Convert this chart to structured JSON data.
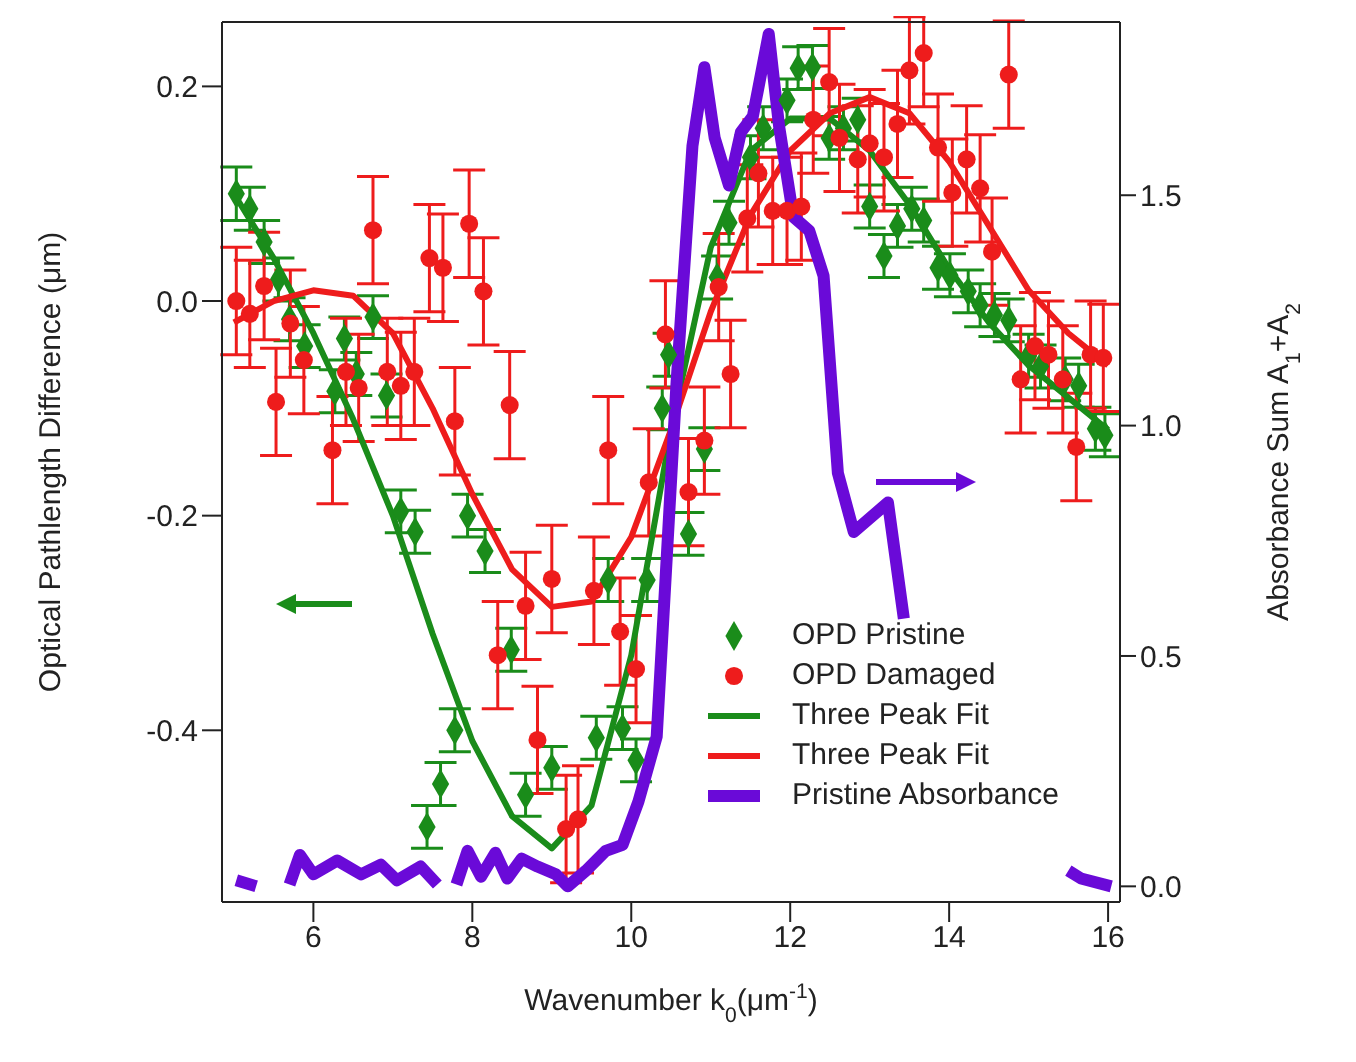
{
  "chart_data": {
    "type": "scatter",
    "xlabel": "Wavenumber k$_{0}$(μm$^{-1}$)",
    "ylabel": "Optical Pathlength Difference (μm)",
    "y2label": "Absorbance Sum A$_{1}$+A$_{2}$",
    "xlim": [
      4.85,
      16.15
    ],
    "xticks": [
      6,
      8,
      10,
      12,
      14,
      16
    ],
    "ylim": [
      -0.56,
      0.26
    ],
    "yticks": [
      {
        "value": -0.4,
        "label": "-0.4"
      },
      {
        "value": -0.2,
        "label": "-0.2"
      },
      {
        "value": 0,
        "label": "0.0"
      },
      {
        "value": 0.2,
        "label": "0.2"
      }
    ],
    "y2lim": [
      -0.034,
      1.876
    ],
    "y2ticks": [
      {
        "value": 0,
        "label": "0.0"
      },
      {
        "value": 0.5,
        "label": "0.5"
      },
      {
        "value": 1,
        "label": "1.0"
      },
      {
        "value": 1.5,
        "label": "1.5"
      }
    ],
    "legend": "bottom right",
    "series": [
      {
        "name": "OPD Pristine",
        "marker": "diamond",
        "color": "#1a8c1a",
        "x": [
          5.03,
          5.2,
          5.38,
          5.56,
          5.7,
          5.89,
          6.27,
          6.39,
          6.54,
          6.75,
          6.92,
          7.1,
          7.28,
          7.43,
          7.6,
          7.78,
          7.94,
          8.16,
          8.49,
          8.67,
          9.0,
          9.56,
          9.71,
          9.89,
          10.06,
          10.2,
          10.39,
          10.47,
          10.72,
          10.92,
          11.08,
          11.23,
          11.5,
          11.66,
          11.96,
          12.1,
          12.28,
          12.49,
          12.67,
          12.85,
          13.0,
          13.18,
          13.35,
          13.53,
          13.68,
          13.86,
          14.01,
          14.24,
          14.39,
          14.57,
          14.75,
          15.0,
          15.15,
          15.46,
          15.63,
          15.84,
          15.96
        ],
        "values": [
          0.1,
          0.086,
          0.055,
          0.02,
          -0.017,
          -0.042,
          -0.084,
          -0.035,
          -0.068,
          -0.015,
          -0.088,
          -0.196,
          -0.215,
          -0.49,
          -0.45,
          -0.4,
          -0.2,
          -0.233,
          -0.325,
          -0.46,
          -0.435,
          -0.407,
          -0.26,
          -0.398,
          -0.428,
          -0.26,
          -0.1,
          -0.05,
          -0.217,
          -0.138,
          0.022,
          0.073,
          0.134,
          0.161,
          0.187,
          0.217,
          0.218,
          0.152,
          0.161,
          0.169,
          0.088,
          0.042,
          0.07,
          0.086,
          0.075,
          0.031,
          0.024,
          0.009,
          -0.004,
          -0.013,
          -0.018,
          -0.051,
          -0.061,
          -0.073,
          -0.079,
          -0.119,
          -0.125
        ],
        "errors": [
          0.025,
          0.02,
          0.02,
          0.02,
          0.02,
          0.02,
          0.02,
          0.02,
          0.02,
          0.02,
          0.02,
          0.02,
          0.02,
          0.02,
          0.02,
          0.02,
          0.02,
          0.02,
          0.02,
          0.02,
          0.02,
          0.02,
          0.02,
          0.02,
          0.02,
          0.02,
          0.02,
          0.02,
          0.02,
          0.02,
          0.02,
          0.02,
          0.02,
          0.02,
          0.02,
          0.02,
          0.02,
          0.02,
          0.02,
          0.02,
          0.02,
          0.02,
          0.02,
          0.02,
          0.02,
          0.02,
          0.02,
          0.02,
          0.02,
          0.02,
          0.02,
          0.02,
          0.02,
          0.02,
          0.02,
          0.02,
          0.02
        ]
      },
      {
        "name": "OPD Damaged",
        "marker": "circle",
        "color": "#ee1c1c",
        "x": [
          5.03,
          5.2,
          5.38,
          5.53,
          5.71,
          5.88,
          6.24,
          6.41,
          6.57,
          6.75,
          6.93,
          7.1,
          7.27,
          7.46,
          7.63,
          7.78,
          7.96,
          8.14,
          8.32,
          8.47,
          8.67,
          8.82,
          9.0,
          9.18,
          9.33,
          9.53,
          9.71,
          9.86,
          10.06,
          10.22,
          10.43,
          10.72,
          10.92,
          11.1,
          11.25,
          11.46,
          11.6,
          11.78,
          11.96,
          12.14,
          12.29,
          12.49,
          12.62,
          12.85,
          13.0,
          13.18,
          13.35,
          13.5,
          13.68,
          13.86,
          14.04,
          14.22,
          14.39,
          14.54,
          14.75,
          14.9,
          15.08,
          15.25,
          15.43,
          15.6,
          15.78,
          15.94
        ],
        "values": [
          0.0,
          -0.012,
          0.014,
          -0.094,
          -0.021,
          -0.055,
          -0.139,
          -0.066,
          -0.081,
          0.066,
          -0.066,
          -0.079,
          -0.066,
          0.04,
          0.031,
          -0.112,
          0.072,
          0.009,
          -0.33,
          -0.097,
          -0.284,
          -0.409,
          -0.259,
          -0.492,
          -0.483,
          -0.27,
          -0.139,
          -0.308,
          -0.343,
          -0.169,
          -0.031,
          -0.178,
          -0.13,
          0.013,
          -0.068,
          0.077,
          0.119,
          0.084,
          0.084,
          0.088,
          0.169,
          0.204,
          0.152,
          0.132,
          0.147,
          0.134,
          0.165,
          0.215,
          0.231,
          0.143,
          0.101,
          0.132,
          0.105,
          0.046,
          0.211,
          -0.073,
          -0.042,
          -0.05,
          -0.073,
          -0.136,
          -0.05,
          -0.053
        ],
        "errors": [
          0.05,
          0.05,
          0.05,
          0.05,
          0.05,
          0.05,
          0.05,
          0.05,
          0.05,
          0.05,
          0.05,
          0.05,
          0.05,
          0.05,
          0.05,
          0.05,
          0.05,
          0.05,
          0.05,
          0.05,
          0.05,
          0.05,
          0.05,
          0.05,
          0.05,
          0.05,
          0.05,
          0.05,
          0.05,
          0.05,
          0.05,
          0.05,
          0.05,
          0.05,
          0.05,
          0.05,
          0.05,
          0.05,
          0.05,
          0.05,
          0.05,
          0.05,
          0.05,
          0.05,
          0.05,
          0.05,
          0.05,
          0.05,
          0.05,
          0.05,
          0.05,
          0.05,
          0.05,
          0.05,
          0.05,
          0.05,
          0.05,
          0.05,
          0.05,
          0.05,
          0.05,
          0.05
        ]
      },
      {
        "name": "Three Peak Fit",
        "type": "line",
        "color": "#1a8c1a",
        "x": [
          5,
          5.5,
          6,
          6.5,
          7,
          7.5,
          8,
          8.5,
          9,
          9.5,
          10,
          10.5,
          11,
          11.5,
          12,
          12.5,
          13,
          13.5,
          14,
          14.5,
          15,
          15.5,
          16
        ],
        "values": [
          0.1,
          0.04,
          -0.03,
          -0.11,
          -0.2,
          -0.31,
          -0.41,
          -0.48,
          -0.51,
          -0.47,
          -0.33,
          -0.12,
          0.05,
          0.14,
          0.17,
          0.17,
          0.14,
          0.09,
          0.03,
          -0.02,
          -0.06,
          -0.09,
          -0.12
        ]
      },
      {
        "name": "Three Peak Fit",
        "type": "line",
        "color": "#ee1c1c",
        "x": [
          5,
          5.5,
          6,
          6.5,
          7,
          7.5,
          8,
          8.5,
          9,
          9.5,
          10,
          10.5,
          11,
          11.5,
          12,
          12.5,
          13,
          13.5,
          14,
          14.5,
          15,
          15.5,
          16
        ],
        "values": [
          -0.02,
          0.0,
          0.01,
          0.005,
          -0.03,
          -0.1,
          -0.18,
          -0.25,
          -0.285,
          -0.28,
          -0.22,
          -0.12,
          -0.01,
          0.08,
          0.14,
          0.175,
          0.19,
          0.175,
          0.13,
          0.07,
          0.01,
          -0.03,
          -0.06
        ]
      },
      {
        "name": "Pristine Absorbance",
        "type": "line",
        "axis": "y2",
        "color": "#6a0ad8",
        "x": [
          5.03,
          5.28,
          5.55,
          5.7,
          5.83,
          6.0,
          6.3,
          6.6,
          6.85,
          7.05,
          7.35,
          7.56,
          7.68,
          7.8,
          7.94,
          8.11,
          8.29,
          8.44,
          8.62,
          8.82,
          9.05,
          9.2,
          9.43,
          9.68,
          9.89,
          10.09,
          10.32,
          10.57,
          10.77,
          10.92,
          11.05,
          11.23,
          11.38,
          11.53,
          11.73,
          11.86,
          12.04,
          12.24,
          12.42,
          12.6,
          12.8,
          13.23,
          13.43,
          14.5,
          15.5,
          15.66,
          16.04
        ],
        "values": [
          0.013,
          0.0,
          null,
          0.004,
          0.068,
          0.026,
          0.056,
          0.026,
          0.047,
          0.013,
          0.043,
          0.004,
          null,
          0.004,
          0.077,
          0.021,
          0.073,
          0.017,
          0.06,
          0.043,
          0.026,
          0.0,
          0.034,
          0.077,
          0.09,
          0.184,
          0.325,
          1.094,
          1.607,
          1.778,
          1.624,
          1.521,
          1.637,
          1.671,
          1.85,
          1.65,
          1.453,
          1.423,
          1.325,
          0.897,
          0.769,
          0.833,
          0.581,
          null,
          0.034,
          0.017,
          0.0
        ]
      }
    ]
  }
}
